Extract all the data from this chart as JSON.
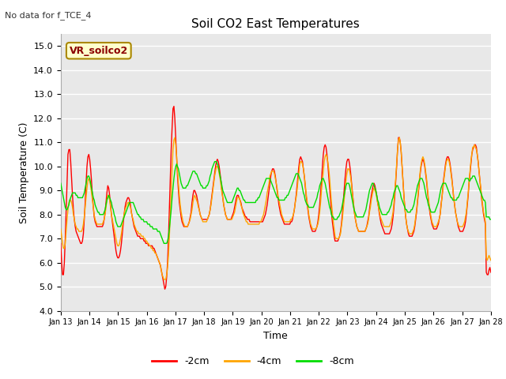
{
  "title": "Soil CO2 East Temperatures",
  "subtitle": "No data for f_TCE_4",
  "xlabel": "Time",
  "ylabel": "Soil Temperature (C)",
  "ylim": [
    4.0,
    15.5
  ],
  "yticks": [
    4.0,
    5.0,
    6.0,
    7.0,
    8.0,
    9.0,
    10.0,
    11.0,
    12.0,
    13.0,
    14.0,
    15.0
  ],
  "xtick_labels": [
    "Jan 13",
    "Jan 14",
    "Jan 15",
    "Jan 16",
    "Jan 17",
    "Jan 18",
    "Jan 19",
    "Jan 20",
    "Jan 21",
    "Jan 22",
    "Jan 23",
    "Jan 24",
    "Jan 25",
    "Jan 26",
    "Jan 27",
    "Jan 28"
  ],
  "box_label": "VR_soilco2",
  "legend_entries": [
    "-2cm",
    "-4cm",
    "-8cm"
  ],
  "colors_2cm": "#ff0000",
  "colors_4cm": "#ffa500",
  "colors_8cm": "#00dd00",
  "fig_bg": "#ffffff",
  "plot_bg": "#e8e8e8",
  "grid_color": "#ffffff",
  "t_2cm": [
    6.8,
    6.0,
    5.5,
    5.5,
    6.0,
    7.0,
    8.2,
    9.5,
    10.5,
    10.7,
    10.7,
    10.2,
    9.5,
    8.8,
    8.2,
    7.8,
    7.5,
    7.3,
    7.2,
    7.1,
    7.0,
    6.9,
    6.8,
    6.8,
    6.9,
    7.2,
    7.8,
    8.5,
    9.3,
    10.0,
    10.4,
    10.5,
    10.3,
    9.9,
    9.4,
    8.8,
    8.3,
    7.9,
    7.7,
    7.6,
    7.5,
    7.5,
    7.5,
    7.5,
    7.5,
    7.5,
    7.5,
    7.6,
    7.8,
    8.1,
    8.5,
    8.9,
    9.2,
    9.1,
    8.8,
    8.4,
    8.0,
    7.7,
    7.4,
    7.1,
    6.8,
    6.5,
    6.3,
    6.2,
    6.2,
    6.3,
    6.5,
    6.8,
    7.2,
    7.6,
    8.0,
    8.3,
    8.5,
    8.6,
    8.7,
    8.7,
    8.6,
    8.4,
    8.1,
    7.9,
    7.7,
    7.5,
    7.4,
    7.3,
    7.2,
    7.1,
    7.1,
    7.1,
    7.0,
    7.0,
    7.0,
    7.0,
    6.9,
    6.9,
    6.8,
    6.8,
    6.8,
    6.7,
    6.7,
    6.7,
    6.7,
    6.7,
    6.6,
    6.6,
    6.5,
    6.4,
    6.3,
    6.2,
    6.1,
    6.0,
    5.9,
    5.7,
    5.5,
    5.3,
    5.1,
    4.9,
    5.0,
    5.4,
    6.0,
    7.0,
    8.2,
    9.5,
    10.7,
    11.6,
    12.4,
    12.5,
    12.0,
    11.2,
    10.4,
    9.6,
    9.0,
    8.5,
    8.2,
    7.9,
    7.7,
    7.6,
    7.5,
    7.5,
    7.5,
    7.5,
    7.5,
    7.6,
    7.7,
    7.9,
    8.1,
    8.5,
    8.8,
    9.0,
    9.0,
    8.9,
    8.8,
    8.6,
    8.4,
    8.2,
    8.0,
    7.9,
    7.8,
    7.8,
    7.8,
    7.8,
    7.8,
    7.8,
    7.8,
    7.9,
    8.0,
    8.2,
    8.5,
    8.8,
    9.1,
    9.4,
    9.7,
    10.0,
    10.2,
    10.3,
    10.2,
    10.0,
    9.7,
    9.4,
    9.0,
    8.7,
    8.4,
    8.2,
    8.0,
    7.9,
    7.8,
    7.8,
    7.8,
    7.8,
    7.8,
    7.9,
    8.0,
    8.1,
    8.3,
    8.5,
    8.7,
    8.8,
    8.8,
    8.7,
    8.6,
    8.5,
    8.3,
    8.2,
    8.1,
    8.0,
    7.9,
    7.9,
    7.8,
    7.8,
    7.8,
    7.7,
    7.7,
    7.7,
    7.7,
    7.7,
    7.7,
    7.7,
    7.7,
    7.7,
    7.7,
    7.7,
    7.7,
    7.7,
    7.7,
    7.7,
    7.8,
    7.9,
    8.0,
    8.2,
    8.4,
    8.7,
    9.0,
    9.3,
    9.6,
    9.8,
    9.9,
    9.9,
    9.8,
    9.6,
    9.3,
    9.0,
    8.7,
    8.4,
    8.2,
    8.0,
    7.9,
    7.8,
    7.7,
    7.6,
    7.6,
    7.6,
    7.6,
    7.6,
    7.6,
    7.6,
    7.7,
    7.7,
    7.8,
    8.0,
    8.2,
    8.5,
    8.8,
    9.2,
    9.6,
    10.0,
    10.3,
    10.4,
    10.3,
    10.2,
    9.9,
    9.6,
    9.2,
    8.8,
    8.5,
    8.2,
    7.9,
    7.7,
    7.5,
    7.4,
    7.3,
    7.3,
    7.3,
    7.3,
    7.4,
    7.5,
    7.7,
    8.0,
    8.4,
    8.9,
    9.4,
    10.0,
    10.5,
    10.8,
    10.9,
    10.8,
    10.5,
    10.1,
    9.6,
    9.1,
    8.6,
    8.1,
    7.7,
    7.4,
    7.1,
    6.9,
    6.9,
    6.9,
    6.9,
    7.0,
    7.1,
    7.3,
    7.6,
    8.0,
    8.5,
    9.0,
    9.5,
    9.9,
    10.2,
    10.3,
    10.3,
    10.1,
    9.8,
    9.4,
    9.0,
    8.6,
    8.2,
    7.9,
    7.7,
    7.5,
    7.4,
    7.3,
    7.3,
    7.3,
    7.3,
    7.3,
    7.3,
    7.3,
    7.3,
    7.4,
    7.5,
    7.7,
    7.9,
    8.2,
    8.5,
    8.8,
    9.0,
    9.2,
    9.3,
    9.2,
    9.0,
    8.8,
    8.5,
    8.3,
    8.0,
    7.8,
    7.6,
    7.5,
    7.4,
    7.3,
    7.2,
    7.2,
    7.2,
    7.2,
    7.2,
    7.2,
    7.3,
    7.4,
    7.6,
    7.9,
    8.3,
    8.8,
    9.4,
    10.0,
    10.7,
    11.2,
    11.2,
    11.0,
    10.6,
    10.0,
    9.4,
    8.8,
    8.3,
    7.9,
    7.6,
    7.4,
    7.2,
    7.1,
    7.1,
    7.1,
    7.1,
    7.2,
    7.3,
    7.5,
    7.8,
    8.1,
    8.5,
    8.9,
    9.3,
    9.7,
    10.0,
    10.2,
    10.3,
    10.2,
    10.0,
    9.7,
    9.4,
    9.0,
    8.6,
    8.3,
    8.0,
    7.8,
    7.6,
    7.5,
    7.4,
    7.4,
    7.4,
    7.4,
    7.5,
    7.6,
    7.8,
    8.0,
    8.4,
    8.7,
    9.1,
    9.5,
    9.8,
    10.1,
    10.3,
    10.4,
    10.4,
    10.3,
    10.1,
    9.8,
    9.5,
    9.1,
    8.7,
    8.4,
    8.1,
    7.9,
    7.7,
    7.5,
    7.4,
    7.3,
    7.3,
    7.3,
    7.3,
    7.4,
    7.5,
    7.7,
    8.0,
    8.4,
    8.8,
    9.3,
    9.7,
    10.1,
    10.5,
    10.7,
    10.8,
    10.9,
    10.9,
    10.8,
    10.5,
    10.2,
    9.8,
    9.4,
    9.0,
    8.6,
    8.3,
    8.0,
    7.8,
    7.6,
    5.6,
    5.5,
    5.5,
    5.7,
    5.8,
    5.6
  ],
  "t_4cm": [
    7.4,
    7.1,
    6.8,
    6.6,
    6.6,
    6.8,
    7.3,
    7.8,
    8.2,
    8.5,
    8.6,
    8.6,
    8.5,
    8.3,
    8.0,
    7.8,
    7.6,
    7.5,
    7.4,
    7.4,
    7.3,
    7.3,
    7.3,
    7.3,
    7.4,
    7.6,
    7.9,
    8.3,
    8.7,
    9.1,
    9.4,
    9.5,
    9.4,
    9.2,
    8.9,
    8.6,
    8.3,
    8.0,
    7.8,
    7.7,
    7.6,
    7.6,
    7.6,
    7.6,
    7.6,
    7.6,
    7.6,
    7.7,
    7.8,
    8.0,
    8.3,
    8.6,
    8.8,
    8.8,
    8.6,
    8.3,
    8.0,
    7.8,
    7.6,
    7.4,
    7.2,
    7.0,
    6.8,
    6.7,
    6.7,
    6.8,
    7.0,
    7.2,
    7.5,
    7.8,
    8.0,
    8.2,
    8.3,
    8.4,
    8.5,
    8.5,
    8.4,
    8.3,
    8.1,
    7.9,
    7.8,
    7.6,
    7.5,
    7.4,
    7.3,
    7.3,
    7.2,
    7.2,
    7.2,
    7.1,
    7.1,
    7.1,
    7.0,
    7.0,
    6.9,
    6.9,
    6.8,
    6.8,
    6.7,
    6.7,
    6.6,
    6.6,
    6.5,
    6.5,
    6.4,
    6.4,
    6.3,
    6.2,
    6.1,
    6.0,
    5.9,
    5.7,
    5.5,
    5.4,
    5.3,
    5.3,
    5.3,
    5.5,
    5.8,
    6.3,
    7.1,
    8.0,
    9.0,
    9.9,
    10.7,
    11.1,
    11.2,
    10.9,
    10.4,
    9.8,
    9.3,
    8.8,
    8.4,
    8.1,
    7.9,
    7.7,
    7.6,
    7.5,
    7.5,
    7.5,
    7.5,
    7.6,
    7.7,
    7.8,
    8.0,
    8.2,
    8.5,
    8.7,
    8.8,
    8.7,
    8.6,
    8.5,
    8.3,
    8.2,
    8.0,
    7.9,
    7.8,
    7.7,
    7.7,
    7.7,
    7.7,
    7.7,
    7.8,
    7.9,
    8.0,
    8.2,
    8.4,
    8.7,
    9.0,
    9.3,
    9.6,
    9.8,
    10.0,
    10.0,
    9.9,
    9.7,
    9.5,
    9.2,
    8.9,
    8.7,
    8.4,
    8.2,
    8.0,
    7.9,
    7.8,
    7.8,
    7.8,
    7.8,
    7.8,
    7.8,
    7.9,
    8.0,
    8.1,
    8.3,
    8.5,
    8.7,
    8.7,
    8.7,
    8.6,
    8.4,
    8.3,
    8.1,
    8.0,
    7.9,
    7.8,
    7.7,
    7.7,
    7.6,
    7.6,
    7.6,
    7.6,
    7.6,
    7.6,
    7.6,
    7.6,
    7.6,
    7.6,
    7.6,
    7.6,
    7.6,
    7.7,
    7.7,
    7.8,
    7.9,
    8.0,
    8.2,
    8.4,
    8.6,
    8.9,
    9.1,
    9.3,
    9.6,
    9.7,
    9.8,
    9.8,
    9.8,
    9.7,
    9.5,
    9.3,
    9.1,
    8.8,
    8.6,
    8.4,
    8.2,
    8.0,
    7.9,
    7.8,
    7.7,
    7.7,
    7.7,
    7.7,
    7.7,
    7.7,
    7.7,
    7.8,
    7.8,
    7.9,
    8.0,
    8.2,
    8.5,
    8.7,
    9.0,
    9.4,
    9.7,
    10.1,
    10.2,
    10.2,
    10.1,
    9.9,
    9.6,
    9.3,
    8.9,
    8.6,
    8.3,
    8.0,
    7.8,
    7.6,
    7.5,
    7.4,
    7.4,
    7.4,
    7.4,
    7.4,
    7.5,
    7.6,
    7.8,
    8.1,
    8.5,
    9.0,
    9.4,
    9.8,
    10.2,
    10.4,
    10.5,
    10.4,
    10.2,
    9.9,
    9.5,
    9.0,
    8.5,
    8.1,
    7.7,
    7.4,
    7.1,
    7.0,
    7.0,
    7.0,
    7.0,
    7.1,
    7.2,
    7.5,
    7.8,
    8.2,
    8.6,
    9.0,
    9.4,
    9.7,
    9.9,
    9.9,
    9.8,
    9.6,
    9.3,
    8.9,
    8.6,
    8.2,
    7.9,
    7.7,
    7.5,
    7.4,
    7.3,
    7.3,
    7.3,
    7.3,
    7.3,
    7.3,
    7.3,
    7.3,
    7.4,
    7.5,
    7.6,
    7.8,
    8.1,
    8.3,
    8.6,
    8.8,
    9.0,
    9.1,
    9.0,
    8.9,
    8.7,
    8.5,
    8.3,
    8.1,
    7.9,
    7.8,
    7.7,
    7.6,
    7.5,
    7.5,
    7.5,
    7.5,
    7.5,
    7.5,
    7.5,
    7.6,
    7.7,
    7.9,
    8.1,
    8.5,
    9.0,
    9.5,
    10.1,
    10.7,
    11.1,
    11.2,
    11.0,
    10.6,
    10.0,
    9.4,
    8.8,
    8.3,
    7.9,
    7.6,
    7.4,
    7.3,
    7.2,
    7.2,
    7.2,
    7.2,
    7.3,
    7.4,
    7.6,
    7.9,
    8.2,
    8.6,
    9.0,
    9.4,
    9.8,
    10.1,
    10.3,
    10.4,
    10.3,
    10.1,
    9.8,
    9.5,
    9.1,
    8.7,
    8.4,
    8.1,
    7.9,
    7.7,
    7.6,
    7.5,
    7.5,
    7.5,
    7.5,
    7.6,
    7.7,
    7.8,
    8.0,
    8.3,
    8.7,
    9.0,
    9.4,
    9.7,
    10.0,
    10.2,
    10.3,
    10.3,
    10.2,
    10.0,
    9.7,
    9.4,
    9.1,
    8.7,
    8.4,
    8.1,
    7.9,
    7.7,
    7.6,
    7.5,
    7.5,
    7.5,
    7.5,
    7.5,
    7.6,
    7.7,
    7.9,
    8.1,
    8.5,
    8.9,
    9.4,
    9.8,
    10.2,
    10.5,
    10.8,
    10.8,
    10.9,
    10.8,
    10.7,
    10.5,
    10.2,
    9.8,
    9.4,
    9.1,
    8.7,
    8.4,
    8.1,
    7.9,
    7.7,
    6.2,
    6.1,
    6.2,
    6.3,
    6.2,
    6.1
  ],
  "t_8cm": [
    9.3,
    9.1,
    8.9,
    8.7,
    8.5,
    8.3,
    8.2,
    8.2,
    8.3,
    8.4,
    8.6,
    8.7,
    8.8,
    8.9,
    8.9,
    8.9,
    8.9,
    8.8,
    8.8,
    8.7,
    8.7,
    8.7,
    8.7,
    8.7,
    8.7,
    8.8,
    8.9,
    9.1,
    9.3,
    9.5,
    9.6,
    9.6,
    9.5,
    9.3,
    9.1,
    8.9,
    8.7,
    8.6,
    8.4,
    8.3,
    8.2,
    8.1,
    8.1,
    8.0,
    8.0,
    8.0,
    8.0,
    8.0,
    8.1,
    8.2,
    8.4,
    8.6,
    8.7,
    8.8,
    8.7,
    8.6,
    8.5,
    8.3,
    8.2,
    8.0,
    7.9,
    7.7,
    7.6,
    7.5,
    7.5,
    7.5,
    7.5,
    7.6,
    7.7,
    7.8,
    7.9,
    8.0,
    8.1,
    8.2,
    8.3,
    8.4,
    8.5,
    8.5,
    8.5,
    8.5,
    8.5,
    8.4,
    8.3,
    8.2,
    8.1,
    8.0,
    8.0,
    7.9,
    7.9,
    7.8,
    7.8,
    7.8,
    7.7,
    7.7,
    7.7,
    7.7,
    7.6,
    7.6,
    7.6,
    7.5,
    7.5,
    7.5,
    7.4,
    7.4,
    7.4,
    7.4,
    7.4,
    7.3,
    7.3,
    7.3,
    7.2,
    7.1,
    7.0,
    6.9,
    6.8,
    6.8,
    6.8,
    6.8,
    6.9,
    7.1,
    7.4,
    7.8,
    8.2,
    8.7,
    9.1,
    9.5,
    9.8,
    10.0,
    10.1,
    10.0,
    9.9,
    9.7,
    9.5,
    9.3,
    9.2,
    9.1,
    9.1,
    9.1,
    9.1,
    9.2,
    9.2,
    9.3,
    9.4,
    9.5,
    9.6,
    9.7,
    9.8,
    9.8,
    9.8,
    9.7,
    9.7,
    9.6,
    9.5,
    9.4,
    9.3,
    9.2,
    9.2,
    9.1,
    9.1,
    9.1,
    9.1,
    9.2,
    9.2,
    9.3,
    9.4,
    9.6,
    9.7,
    9.9,
    10.0,
    10.1,
    10.2,
    10.2,
    10.2,
    10.1,
    10.0,
    9.8,
    9.6,
    9.4,
    9.2,
    9.0,
    8.9,
    8.8,
    8.7,
    8.6,
    8.5,
    8.5,
    8.5,
    8.5,
    8.5,
    8.5,
    8.6,
    8.7,
    8.8,
    8.9,
    9.0,
    9.1,
    9.1,
    9.0,
    9.0,
    8.9,
    8.8,
    8.7,
    8.6,
    8.6,
    8.5,
    8.5,
    8.5,
    8.5,
    8.5,
    8.5,
    8.5,
    8.5,
    8.5,
    8.5,
    8.5,
    8.5,
    8.6,
    8.6,
    8.7,
    8.7,
    8.8,
    8.9,
    9.0,
    9.1,
    9.2,
    9.3,
    9.4,
    9.5,
    9.5,
    9.5,
    9.5,
    9.5,
    9.4,
    9.3,
    9.2,
    9.1,
    9.0,
    8.9,
    8.8,
    8.7,
    8.7,
    8.6,
    8.6,
    8.6,
    8.6,
    8.6,
    8.6,
    8.6,
    8.7,
    8.7,
    8.8,
    8.8,
    8.9,
    9.0,
    9.1,
    9.2,
    9.3,
    9.4,
    9.5,
    9.6,
    9.7,
    9.7,
    9.7,
    9.6,
    9.5,
    9.4,
    9.3,
    9.1,
    8.9,
    8.8,
    8.6,
    8.5,
    8.4,
    8.4,
    8.3,
    8.3,
    8.3,
    8.3,
    8.3,
    8.3,
    8.4,
    8.5,
    8.6,
    8.7,
    8.9,
    9.0,
    9.2,
    9.3,
    9.4,
    9.5,
    9.5,
    9.4,
    9.3,
    9.1,
    8.9,
    8.7,
    8.5,
    8.3,
    8.2,
    8.0,
    7.9,
    7.9,
    7.8,
    7.8,
    7.8,
    7.8,
    7.9,
    7.9,
    8.0,
    8.1,
    8.2,
    8.4,
    8.6,
    8.8,
    9.0,
    9.2,
    9.3,
    9.3,
    9.3,
    9.2,
    9.0,
    8.8,
    8.6,
    8.4,
    8.2,
    8.1,
    8.0,
    7.9,
    7.9,
    7.9,
    7.9,
    7.9,
    7.9,
    7.9,
    7.9,
    8.0,
    8.1,
    8.2,
    8.4,
    8.6,
    8.8,
    9.0,
    9.1,
    9.2,
    9.3,
    9.3,
    9.2,
    9.1,
    9.0,
    8.8,
    8.6,
    8.5,
    8.3,
    8.2,
    8.1,
    8.0,
    8.0,
    8.0,
    8.0,
    8.0,
    8.0,
    8.1,
    8.1,
    8.2,
    8.3,
    8.4,
    8.6,
    8.7,
    8.9,
    9.0,
    9.1,
    9.2,
    9.2,
    9.1,
    9.0,
    8.9,
    8.7,
    8.6,
    8.5,
    8.4,
    8.3,
    8.2,
    8.2,
    8.1,
    8.1,
    8.1,
    8.1,
    8.2,
    8.2,
    8.3,
    8.4,
    8.6,
    8.8,
    9.0,
    9.2,
    9.3,
    9.4,
    9.5,
    9.5,
    9.5,
    9.4,
    9.3,
    9.1,
    8.9,
    8.7,
    8.6,
    8.4,
    8.3,
    8.2,
    8.1,
    8.1,
    8.1,
    8.1,
    8.1,
    8.2,
    8.3,
    8.4,
    8.5,
    8.7,
    8.9,
    9.1,
    9.2,
    9.3,
    9.3,
    9.3,
    9.3,
    9.2,
    9.1,
    9.0,
    8.9,
    8.8,
    8.7,
    8.7,
    8.6,
    8.6,
    8.6,
    8.6,
    8.6,
    8.7,
    8.7,
    8.8,
    8.9,
    9.0,
    9.1,
    9.2,
    9.3,
    9.4,
    9.5,
    9.5,
    9.5,
    9.5,
    9.4,
    9.4,
    9.5,
    9.5,
    9.6,
    9.6,
    9.6,
    9.5,
    9.4,
    9.3,
    9.2,
    9.1,
    9.0,
    8.9,
    8.8,
    8.7,
    8.6,
    8.6,
    8.5,
    7.9,
    7.9,
    7.9,
    7.9,
    7.8,
    7.8
  ]
}
